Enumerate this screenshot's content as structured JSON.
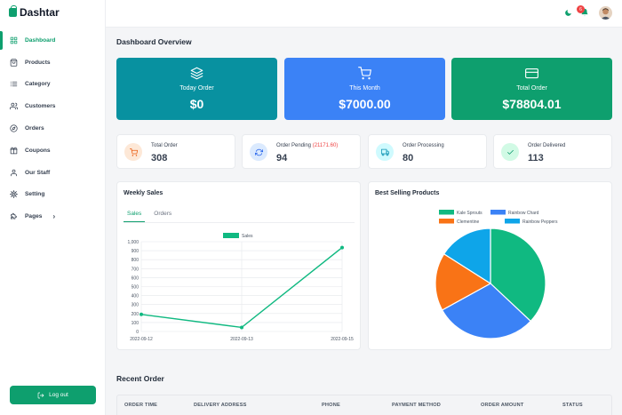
{
  "brand": {
    "name": "Dashtar"
  },
  "sidebar": {
    "items": [
      {
        "label": "Dashboard",
        "icon": "grid-icon",
        "active": true
      },
      {
        "label": "Products",
        "icon": "bag-icon"
      },
      {
        "label": "Category",
        "icon": "list-icon"
      },
      {
        "label": "Customers",
        "icon": "users-icon"
      },
      {
        "label": "Orders",
        "icon": "compass-icon"
      },
      {
        "label": "Coupons",
        "icon": "gift-icon"
      },
      {
        "label": "Our Staff",
        "icon": "user-icon"
      },
      {
        "label": "Setting",
        "icon": "gear-icon"
      },
      {
        "label": "Pages",
        "icon": "puzzle-icon",
        "caret": "›"
      }
    ],
    "logout_label": "Log out"
  },
  "header": {
    "notification_count": "6"
  },
  "page_title": "Dashboard Overview",
  "overview_cards": [
    {
      "label": "Today Order",
      "value": "$0",
      "color": "#0891a0",
      "icon": "layers-icon"
    },
    {
      "label": "This Month",
      "value": "$7000.00",
      "color": "#3b82f6",
      "icon": "cart-icon"
    },
    {
      "label": "Total Order",
      "value": "$78804.01",
      "color": "#0e9f6e",
      "icon": "card-icon"
    }
  ],
  "status_cards": [
    {
      "label": "Total Order",
      "extra": "",
      "value": "308",
      "icon": "cart-icon",
      "bg": "#fde8d7",
      "fg": "#ea580c"
    },
    {
      "label": "Order Pending ",
      "extra": "(21171.60)",
      "value": "94",
      "icon": "refresh-icon",
      "bg": "#dbeafe",
      "fg": "#2563eb"
    },
    {
      "label": "Order Processing",
      "extra": "",
      "value": "80",
      "icon": "truck-icon",
      "bg": "#cffafe",
      "fg": "#0891b2"
    },
    {
      "label": "Order Delivered",
      "extra": "",
      "value": "113",
      "icon": "check-icon",
      "bg": "#d1fae5",
      "fg": "#059669"
    }
  ],
  "weekly_sales": {
    "title": "Weekly Sales",
    "tabs": [
      "Sales",
      "Orders"
    ]
  },
  "best_selling": {
    "title": "Best Selling Products"
  },
  "chart_data": [
    {
      "type": "line",
      "legend": "Sales",
      "legend_placement": "top",
      "x": [
        "2022-09-12",
        "2022-09-13",
        "2022-09-15"
      ],
      "series": [
        {
          "name": "Sales",
          "values": [
            190,
            45,
            935
          ],
          "color": "#10b981"
        }
      ],
      "ylim": [
        0,
        1000
      ],
      "yticks": [
        "0",
        "100",
        "200",
        "300",
        "400",
        "500",
        "600",
        "700",
        "800",
        "900",
        "1,000"
      ],
      "grid": true
    },
    {
      "type": "pie",
      "legend_placement": "top",
      "slices": [
        {
          "name": "Kale Sprouts",
          "value": 37,
          "color": "#10b981"
        },
        {
          "name": "Rainbow Chard",
          "value": 30,
          "color": "#3b82f6"
        },
        {
          "name": "Clementine",
          "value": 17,
          "color": "#f97316"
        },
        {
          "name": "Rainbow Peppers",
          "value": 16,
          "color": "#0ea5e9"
        }
      ]
    }
  ],
  "recent_order": {
    "title": "Recent Order",
    "columns": [
      "ORDER TIME",
      "DELIVERY ADDRESS",
      "PHONE",
      "PAYMENT METHOD",
      "ORDER AMOUNT",
      "STATUS"
    ]
  }
}
